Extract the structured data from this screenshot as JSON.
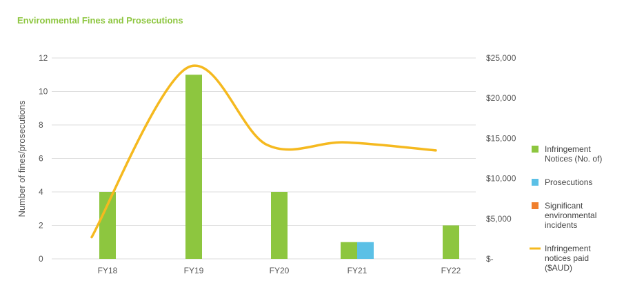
{
  "chart_data": {
    "type": "bar",
    "title": "Environmental Fines and Prosecutions",
    "title_color": "#8dc63f",
    "categories": [
      "FY18",
      "FY19",
      "FY20",
      "FY21",
      "FY22"
    ],
    "ylabel": "Number of fines/prosecutions",
    "ylim": [
      0,
      12
    ],
    "yticks": [
      0,
      2,
      4,
      6,
      8,
      10,
      12
    ],
    "y2lim": [
      0,
      25000
    ],
    "y2ticks": [
      "$-",
      "$5,000",
      "$10,000",
      "$15,000",
      "$20,000",
      "$25,000"
    ],
    "grid": true,
    "legend_position": "right",
    "series": [
      {
        "name": "Infringement Notices (No. of)",
        "kind": "bar",
        "axis": "left",
        "color": "#8dc63f",
        "values": [
          4,
          11,
          4,
          1,
          2
        ]
      },
      {
        "name": "Prosecutions",
        "kind": "bar",
        "axis": "left",
        "color": "#5bc0e6",
        "values": [
          0,
          0,
          0,
          1,
          0
        ]
      },
      {
        "name": "Significant environmental incidents",
        "kind": "bar",
        "axis": "left",
        "color": "#f07f2d",
        "values": [
          0,
          0,
          0,
          0,
          0
        ]
      },
      {
        "name": "Infringement notices paid ($AUD)",
        "kind": "line",
        "axis": "right",
        "color": "#f5b91f",
        "values": [
          2700,
          23800,
          14200,
          14500,
          13500
        ]
      }
    ],
    "legend": [
      {
        "lines": [
          "Infringement",
          "Notices (No. of)"
        ],
        "color": "#8dc63f",
        "shape": "square"
      },
      {
        "lines": [
          "Prosecutions"
        ],
        "color": "#5bc0e6",
        "shape": "square"
      },
      {
        "lines": [
          "Significant",
          "environmental",
          "incidents"
        ],
        "color": "#f07f2d",
        "shape": "square"
      },
      {
        "lines": [
          "Infringement",
          "notices paid",
          "($AUD)"
        ],
        "color": "#f5b91f",
        "shape": "line"
      }
    ]
  }
}
